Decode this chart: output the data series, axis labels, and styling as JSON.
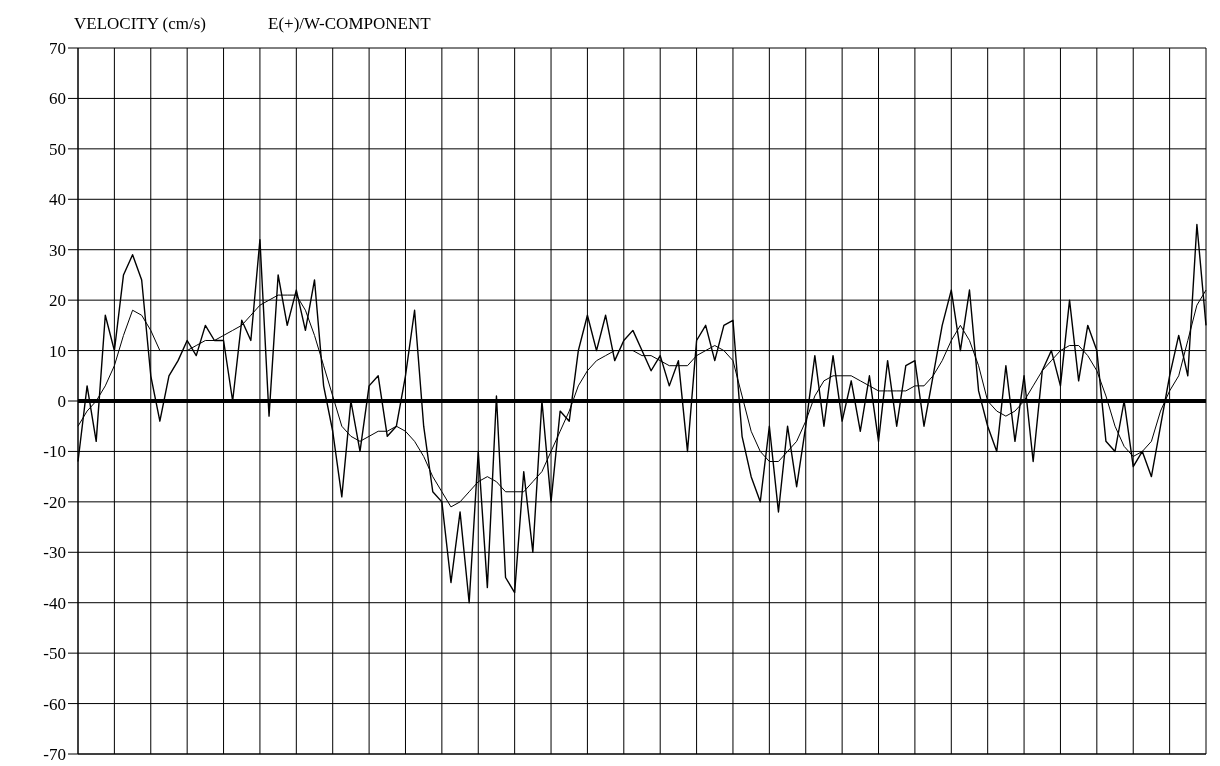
{
  "chart_data": {
    "type": "line",
    "title": "E(+)/W-COMPONENT",
    "ylabel": "VELOCITY (cm/s)",
    "categories": [
      null,
      null,
      null,
      null,
      null,
      null,
      null,
      null,
      null,
      null,
      null,
      null,
      null,
      null,
      null,
      null,
      null,
      null,
      null,
      null,
      null,
      null,
      null,
      null,
      null,
      null,
      null,
      null,
      null,
      null,
      null,
      null,
      null,
      null,
      null,
      null,
      null,
      null,
      null,
      null,
      null,
      null,
      null,
      null,
      null,
      null,
      null,
      null,
      null,
      null,
      null,
      null,
      null,
      null,
      null,
      null,
      null,
      null,
      null,
      null,
      null,
      null,
      null,
      null,
      null,
      null,
      null,
      null,
      null,
      null,
      null,
      null,
      null,
      null,
      null,
      null,
      null,
      null,
      null,
      null,
      null,
      null,
      null,
      null,
      null,
      null,
      null,
      null,
      null,
      null,
      null,
      null,
      null,
      null,
      null,
      null,
      null,
      null,
      null,
      null,
      null,
      null,
      null,
      null,
      null,
      null,
      null,
      null,
      null,
      null,
      null,
      null,
      null,
      null,
      null,
      null,
      null,
      null,
      null,
      null,
      null,
      null,
      null,
      null,
      null
    ],
    "ylim": [
      -70,
      70
    ],
    "yticks": [
      -70,
      -60,
      -50,
      -40,
      -30,
      -20,
      -10,
      0,
      10,
      20,
      30,
      40,
      50,
      60,
      70
    ],
    "tick_labels": "y",
    "grid": true,
    "marker": "none",
    "line_style": "solid",
    "ref_lines": [
      {
        "axis": "y",
        "value": 0,
        "color": "#000000"
      }
    ],
    "series": [
      {
        "color": "#000000",
        "values": [
          -12,
          3,
          -8,
          17,
          10,
          25,
          29,
          24,
          5,
          -4,
          5,
          8,
          12,
          9,
          15,
          12,
          12,
          0,
          16,
          12,
          32,
          -3,
          25,
          15,
          22,
          14,
          24,
          3,
          -6,
          -19,
          0,
          -10,
          3,
          5,
          -7,
          -5,
          5,
          18,
          -5,
          -18,
          -20,
          -36,
          -22,
          -40,
          -10,
          -37,
          1,
          -35,
          -38,
          -14,
          -30,
          0,
          -20,
          -2,
          -4,
          10,
          17,
          10,
          17,
          8,
          12,
          14,
          10,
          6,
          9,
          3,
          8,
          -10,
          12,
          15,
          8,
          15,
          16,
          -7,
          -15,
          -20,
          -5,
          -22,
          -5,
          -17,
          -5,
          9,
          -5,
          9,
          -4,
          4,
          -6,
          5,
          -8,
          8,
          -5,
          7,
          8,
          -5,
          5,
          15,
          22,
          10,
          22,
          2,
          -5,
          -10,
          7,
          -8,
          5,
          -12,
          6,
          10,
          3,
          20,
          4,
          15,
          10,
          -8,
          -10,
          0,
          -13,
          -10,
          -15,
          -5,
          5,
          13,
          5,
          35,
          15
        ]
      },
      {
        "color": "#000000",
        "values": [
          -5,
          -2,
          0,
          3,
          7,
          13,
          18,
          17,
          14,
          10,
          10,
          10,
          10,
          11,
          12,
          12,
          13,
          14,
          15,
          17,
          19,
          20,
          21,
          21,
          21,
          18,
          13,
          7,
          1,
          -5,
          -7,
          -8,
          -7,
          -6,
          -6,
          -5,
          -6,
          -8,
          -11,
          -15,
          -18,
          -21,
          -20,
          -18,
          -16,
          -15,
          -16,
          -18,
          -18,
          -18,
          -16,
          -14,
          -10,
          -6,
          -2,
          3,
          6,
          8,
          9,
          10,
          10,
          10,
          9,
          9,
          8,
          7,
          7,
          7,
          9,
          10,
          11,
          10,
          8,
          1,
          -6,
          -10,
          -12,
          -12,
          -10,
          -8,
          -4,
          1,
          4,
          5,
          5,
          5,
          4,
          3,
          2,
          2,
          2,
          2,
          3,
          3,
          5,
          8,
          12,
          15,
          12,
          7,
          0,
          -2,
          -3,
          -2,
          0,
          3,
          6,
          8,
          10,
          11,
          11,
          9,
          6,
          1,
          -5,
          -9,
          -11,
          -10,
          -8,
          -2,
          2,
          5,
          12,
          19,
          22
        ]
      }
    ]
  }
}
